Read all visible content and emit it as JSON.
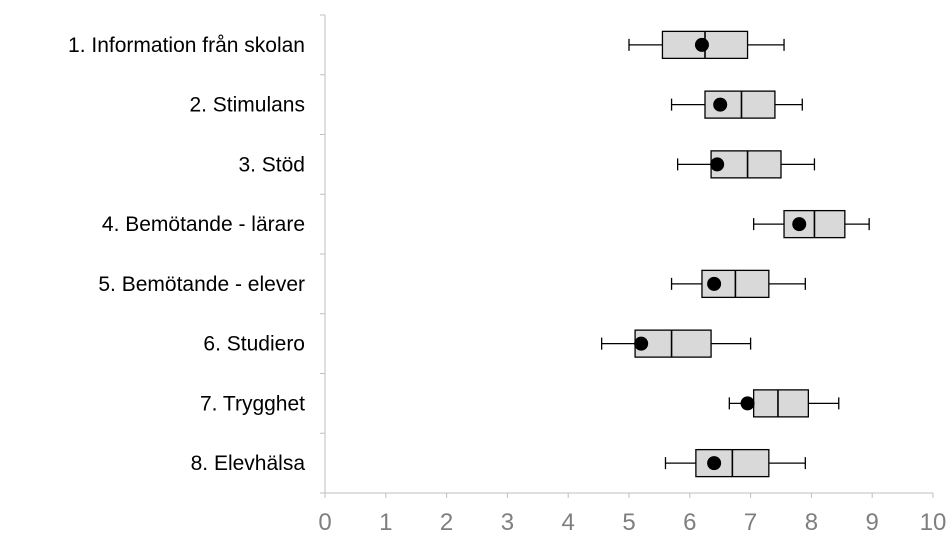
{
  "chart_data": {
    "type": "boxplot",
    "orientation": "horizontal",
    "title": "",
    "xlabel": "",
    "ylabel": "",
    "xlim": [
      0,
      10
    ],
    "xticks": [
      "0",
      "1",
      "2",
      "3",
      "4",
      "5",
      "6",
      "7",
      "8",
      "9",
      "10"
    ],
    "grid": false,
    "legend": "none",
    "colors": {
      "box_fill": "#d9d9d9",
      "stroke": "#000000",
      "marker": "#000000",
      "axis": "#bfbfbf",
      "tick_text": "#7f7f7f"
    },
    "categories": [
      "1. Information från skolan",
      "2. Stimulans",
      "3. Stöd",
      "4. Bemötande - lärare",
      "5. Bemötande - elever",
      "6. Studiero",
      "7. Trygghet",
      "8. Elevhälsa"
    ],
    "boxes": [
      {
        "min": 5.0,
        "q1": 5.55,
        "median": 6.25,
        "q3": 6.95,
        "max": 7.55,
        "marker": 6.2
      },
      {
        "min": 5.7,
        "q1": 6.25,
        "median": 6.85,
        "q3": 7.4,
        "max": 7.85,
        "marker": 6.5
      },
      {
        "min": 5.8,
        "q1": 6.35,
        "median": 6.95,
        "q3": 7.5,
        "max": 8.05,
        "marker": 6.45
      },
      {
        "min": 7.05,
        "q1": 7.55,
        "median": 8.05,
        "q3": 8.55,
        "max": 8.95,
        "marker": 7.8
      },
      {
        "min": 5.7,
        "q1": 6.2,
        "median": 6.75,
        "q3": 7.3,
        "max": 7.9,
        "marker": 6.4
      },
      {
        "min": 4.55,
        "q1": 5.1,
        "median": 5.7,
        "q3": 6.35,
        "max": 7.0,
        "marker": 5.2
      },
      {
        "min": 6.65,
        "q1": 7.05,
        "median": 7.45,
        "q3": 7.95,
        "max": 8.45,
        "marker": 6.95
      },
      {
        "min": 5.6,
        "q1": 6.1,
        "median": 6.7,
        "q3": 7.3,
        "max": 7.9,
        "marker": 6.4
      }
    ]
  }
}
